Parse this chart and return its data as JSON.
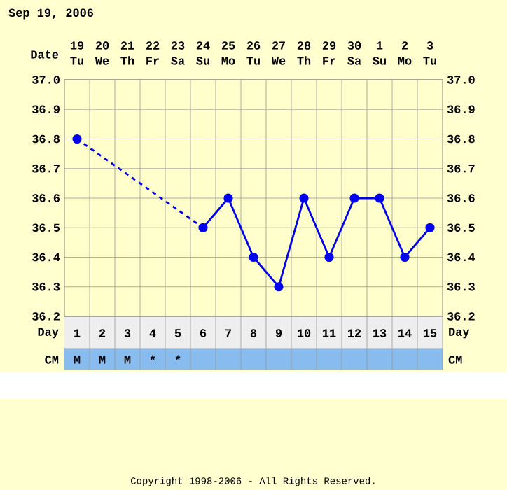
{
  "chart_data": {
    "type": "line",
    "title": "Sep 19, 2006",
    "xlabel": "Day",
    "x2label": "Date",
    "x": [
      1,
      2,
      3,
      4,
      5,
      6,
      7,
      8,
      9,
      10,
      11,
      12,
      13,
      14,
      15
    ],
    "series": [
      {
        "color": "#0000ee",
        "x": [
          1,
          6
        ],
        "values": [
          36.8,
          36.5
        ],
        "line_style": "dashed"
      },
      {
        "color": "#0000ee",
        "values": [
          36.8,
          null,
          null,
          null,
          null,
          36.5,
          36.6,
          36.4,
          36.3,
          36.6,
          36.4,
          36.6,
          36.6,
          36.4,
          36.5
        ],
        "line_style": "solid",
        "marker": "circle"
      }
    ],
    "xlim": [
      0.5,
      15.5
    ],
    "xticks": [
      1,
      2,
      3,
      4,
      5,
      6,
      7,
      8,
      9,
      10,
      11,
      12,
      13,
      14,
      15
    ],
    "x2lim": [
      "2006-09-18T12:00",
      "2006-10-03T12:00"
    ],
    "x2ticks": [
      {
        "value": "2006-09-19",
        "label": "19 Tu"
      },
      {
        "value": "2006-09-20",
        "label": "20 We"
      },
      {
        "value": "2006-09-21",
        "label": "21 Th"
      },
      {
        "value": "2006-09-22",
        "label": "22 Fr"
      },
      {
        "value": "2006-09-23",
        "label": "23 Sa"
      },
      {
        "value": "2006-09-24",
        "label": "24 Su"
      },
      {
        "value": "2006-09-25",
        "label": "25 Mo"
      },
      {
        "value": "2006-09-26",
        "label": "26 Tu"
      },
      {
        "value": "2006-09-27",
        "label": "27 We"
      },
      {
        "value": "2006-09-28",
        "label": "28 Th"
      },
      {
        "value": "2006-09-29",
        "label": "29 Fr"
      },
      {
        "value": "2006-09-30",
        "label": "30 Sa"
      },
      {
        "value": "2006-10-01",
        "label": "1 Su"
      },
      {
        "value": "2006-10-02",
        "label": "2 Mo"
      },
      {
        "value": "2006-10-03",
        "label": "3 Tu"
      }
    ],
    "ylim": [
      36.2,
      37.0
    ],
    "yticks": [
      {
        "value": 36.2,
        "label": "36.2"
      },
      {
        "value": 36.3,
        "label": "36.3"
      },
      {
        "value": 36.4,
        "label": "36.4"
      },
      {
        "value": 36.5,
        "label": "36.5"
      },
      {
        "value": 36.6,
        "label": "36.6"
      },
      {
        "value": 36.7,
        "label": "36.7"
      },
      {
        "value": 36.8,
        "label": "36.8"
      },
      {
        "value": 36.9,
        "label": "36.9"
      },
      {
        "value": 37.0,
        "label": "37.0"
      }
    ],
    "y2lim": [
      36.2,
      37.0
    ],
    "y2ticks": [
      {
        "value": 36.2,
        "label": "36.2"
      },
      {
        "value": 36.3,
        "label": "36.3"
      },
      {
        "value": 36.4,
        "label": "36.4"
      },
      {
        "value": 36.5,
        "label": "36.5"
      },
      {
        "value": 36.6,
        "label": "36.6"
      },
      {
        "value": 36.7,
        "label": "36.7"
      },
      {
        "value": 36.8,
        "label": "36.8"
      },
      {
        "value": 36.9,
        "label": "36.9"
      },
      {
        "value": 37.0,
        "label": "37.0"
      }
    ],
    "grid": true,
    "annotations": [
      "CM",
      "M",
      "M",
      "M",
      "*",
      "*",
      "Copyright 1998-2006 - All Rights Reserved."
    ]
  }
}
